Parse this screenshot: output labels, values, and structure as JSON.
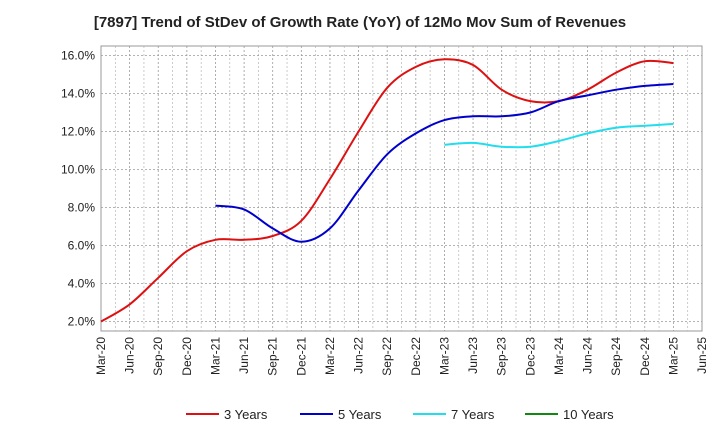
{
  "chart_data": {
    "type": "line",
    "title": "[7897]  Trend of StDev of Growth Rate (YoY) of 12Mo Mov Sum of Revenues",
    "xlabel": "",
    "ylabel": "",
    "ylim": [
      1.5,
      16.5
    ],
    "y_ticks": [
      2.0,
      4.0,
      6.0,
      8.0,
      10.0,
      12.0,
      14.0,
      16.0
    ],
    "y_tick_labels": [
      "2.0%",
      "4.0%",
      "6.0%",
      "8.0%",
      "10.0%",
      "12.0%",
      "14.0%",
      "16.0%"
    ],
    "x_tick_labels": [
      "Mar-20",
      "Jun-20",
      "Sep-20",
      "Dec-20",
      "Mar-21",
      "Jun-21",
      "Sep-21",
      "Dec-21",
      "Mar-22",
      "Jun-22",
      "Sep-22",
      "Dec-22",
      "Mar-23",
      "Jun-23",
      "Sep-23",
      "Dec-23",
      "Mar-24",
      "Jun-24",
      "Sep-24",
      "Dec-24",
      "Mar-25",
      "Jun-25"
    ],
    "grid": true,
    "legend_position": "bottom",
    "series": [
      {
        "name": "3 Years",
        "color": "#dd1111",
        "start_index": 0,
        "values": [
          2.0,
          2.9,
          4.3,
          5.7,
          6.3,
          6.3,
          6.5,
          7.3,
          9.5,
          12.0,
          14.3,
          15.4,
          15.8,
          15.5,
          14.2,
          13.6,
          13.6,
          14.2,
          15.1,
          15.7,
          15.6
        ]
      },
      {
        "name": "5 Years",
        "color": "#0000cc",
        "start_index": 4,
        "values": [
          8.1,
          7.9,
          6.9,
          6.2,
          6.9,
          8.9,
          10.8,
          11.9,
          12.6,
          12.8,
          12.8,
          13.0,
          13.6,
          13.9,
          14.2,
          14.4,
          14.5
        ]
      },
      {
        "name": "7 Years",
        "color": "#22ddee",
        "start_index": 12,
        "values": [
          11.3,
          11.4,
          11.2,
          11.2,
          11.5,
          11.9,
          12.2,
          12.3,
          12.4
        ]
      },
      {
        "name": "10 Years",
        "color": "#118811",
        "start_index": 0,
        "values": []
      }
    ]
  }
}
